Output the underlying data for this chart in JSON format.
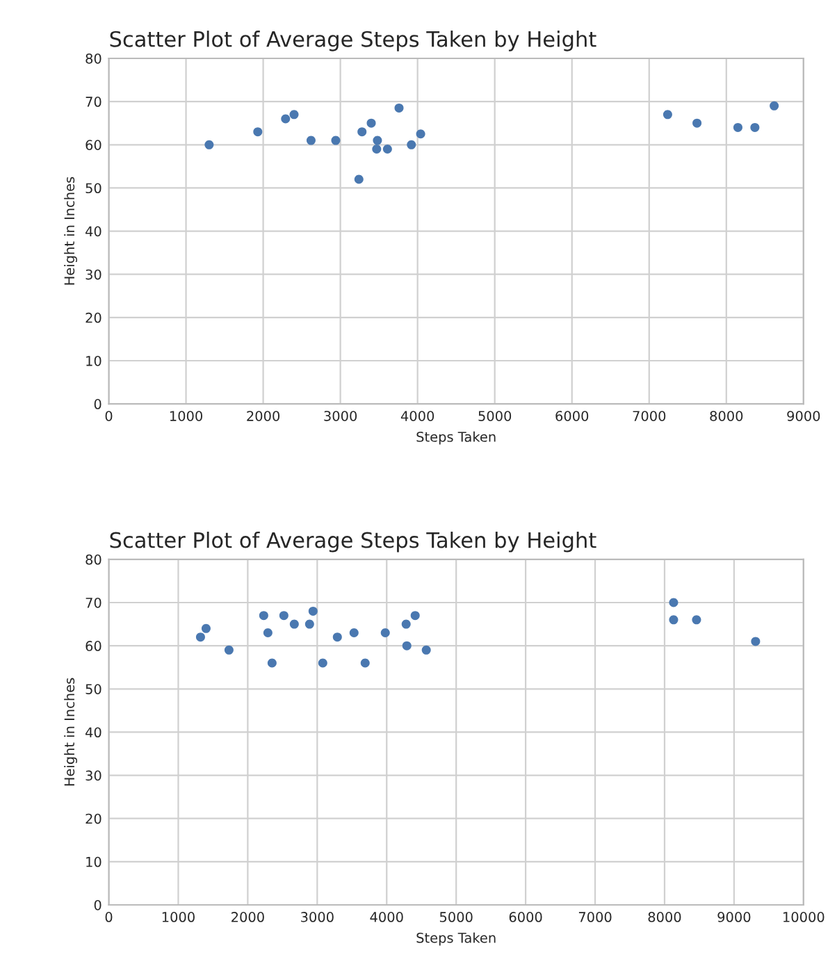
{
  "chart_data": [
    {
      "type": "scatter",
      "title": "Scatter Plot of Average Steps Taken by Height",
      "xlabel": "Steps Taken",
      "ylabel": "Height in Inches",
      "marker": "circle",
      "grid": true,
      "xlim": [
        0,
        9000
      ],
      "xticks": [
        0,
        1000,
        2000,
        3000,
        4000,
        5000,
        6000,
        7000,
        8000,
        9000
      ],
      "ylim": [
        0,
        80
      ],
      "yticks": [
        0,
        10,
        20,
        30,
        40,
        50,
        60,
        70,
        80
      ],
      "series": [
        {
          "color": "#4a78b0",
          "x": [
            1300,
            1930,
            2290,
            2400,
            2620,
            2940,
            3240,
            3280,
            3400,
            3470,
            3480,
            3610,
            3760,
            3920,
            4040,
            7240,
            7620,
            8150,
            8370,
            8620
          ],
          "values": [
            60,
            63,
            66,
            67,
            61,
            61,
            52,
            63,
            65,
            59,
            61,
            59,
            68.5,
            60,
            62.5,
            67,
            65,
            64,
            64,
            69
          ]
        }
      ]
    },
    {
      "type": "scatter",
      "title": "Scatter Plot of Average Steps Taken by Height",
      "xlabel": "Steps Taken",
      "ylabel": "Height in Inches",
      "marker": "circle",
      "grid": true,
      "xlim": [
        0,
        10000
      ],
      "xticks": [
        0,
        1000,
        2000,
        3000,
        4000,
        5000,
        6000,
        7000,
        8000,
        9000,
        10000
      ],
      "ylim": [
        0,
        80
      ],
      "yticks": [
        0,
        10,
        20,
        30,
        40,
        50,
        60,
        70,
        80
      ],
      "series": [
        {
          "color": "#4a78b0",
          "x": [
            1320,
            1400,
            1730,
            2230,
            2290,
            2350,
            2520,
            2670,
            2890,
            2940,
            3080,
            3290,
            3530,
            3690,
            3980,
            4280,
            4290,
            4410,
            4570,
            8130,
            8130,
            8460,
            9310
          ],
          "values": [
            62,
            64,
            59,
            67,
            63,
            56,
            67,
            65,
            65,
            68,
            56,
            62,
            63,
            56,
            63,
            65,
            60,
            67,
            59,
            66,
            70,
            66,
            61
          ]
        }
      ]
    }
  ]
}
